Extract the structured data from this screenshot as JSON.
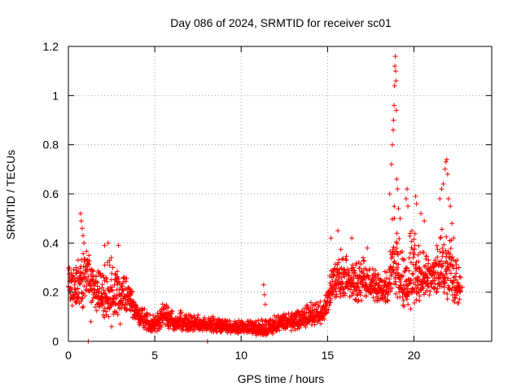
{
  "chart_data": {
    "type": "scatter",
    "title": "Day 086 of 2024, SRMTID for receiver sc01",
    "xlabel": "GPS time / hours",
    "ylabel": "SRMTID / TECUs",
    "xlim": [
      0,
      24.5
    ],
    "ylim": [
      0,
      1.2
    ],
    "xticks": [
      0,
      5,
      10,
      15,
      20
    ],
    "yticks": [
      0,
      0.2,
      0.4,
      0.6,
      0.8,
      1,
      1.2
    ],
    "xtick_labels": [
      "0",
      "5",
      "10",
      "15",
      "20"
    ],
    "ytick_labels": [
      "0",
      "0.2",
      "0.4",
      "0.6",
      "0.8",
      "1",
      "1.2"
    ],
    "grid": true,
    "series": [
      {
        "name": "SRMTID",
        "color": "#ff0000",
        "marker": "plus",
        "envelope": [
          {
            "x": 0.0,
            "low": 0.15,
            "mid": 0.24,
            "high": 0.33
          },
          {
            "x": 0.5,
            "low": 0.12,
            "mid": 0.22,
            "high": 0.34
          },
          {
            "x": 1.0,
            "low": 0.12,
            "mid": 0.27,
            "high": 0.38
          },
          {
            "x": 1.5,
            "low": 0.12,
            "mid": 0.22,
            "high": 0.33
          },
          {
            "x": 2.0,
            "low": 0.08,
            "mid": 0.18,
            "high": 0.34
          },
          {
            "x": 2.5,
            "low": 0.08,
            "mid": 0.18,
            "high": 0.36
          },
          {
            "x": 3.0,
            "low": 0.1,
            "mid": 0.18,
            "high": 0.32
          },
          {
            "x": 3.5,
            "low": 0.12,
            "mid": 0.19,
            "high": 0.26
          },
          {
            "x": 4.0,
            "low": 0.06,
            "mid": 0.11,
            "high": 0.16
          },
          {
            "x": 4.5,
            "low": 0.03,
            "mid": 0.08,
            "high": 0.13
          },
          {
            "x": 5.0,
            "low": 0.02,
            "mid": 0.06,
            "high": 0.11
          },
          {
            "x": 5.5,
            "low": 0.05,
            "mid": 0.11,
            "high": 0.18
          },
          {
            "x": 6.0,
            "low": 0.04,
            "mid": 0.08,
            "high": 0.14
          },
          {
            "x": 7.0,
            "low": 0.04,
            "mid": 0.07,
            "high": 0.12
          },
          {
            "x": 8.0,
            "low": 0.04,
            "mid": 0.07,
            "high": 0.11
          },
          {
            "x": 9.0,
            "low": 0.03,
            "mid": 0.06,
            "high": 0.1
          },
          {
            "x": 10.0,
            "low": 0.03,
            "mid": 0.05,
            "high": 0.09
          },
          {
            "x": 11.0,
            "low": 0.02,
            "mid": 0.05,
            "high": 0.09
          },
          {
            "x": 11.5,
            "low": 0.02,
            "mid": 0.05,
            "high": 0.1
          },
          {
            "x": 12.0,
            "low": 0.03,
            "mid": 0.07,
            "high": 0.11
          },
          {
            "x": 13.0,
            "low": 0.04,
            "mid": 0.08,
            "high": 0.12
          },
          {
            "x": 14.0,
            "low": 0.06,
            "mid": 0.1,
            "high": 0.16
          },
          {
            "x": 14.8,
            "low": 0.07,
            "mid": 0.11,
            "high": 0.17
          },
          {
            "x": 15.2,
            "low": 0.14,
            "mid": 0.22,
            "high": 0.32
          },
          {
            "x": 15.7,
            "low": 0.16,
            "mid": 0.26,
            "high": 0.4
          },
          {
            "x": 16.5,
            "low": 0.15,
            "mid": 0.23,
            "high": 0.33
          },
          {
            "x": 17.0,
            "low": 0.16,
            "mid": 0.24,
            "high": 0.36
          },
          {
            "x": 18.0,
            "low": 0.15,
            "mid": 0.21,
            "high": 0.28
          },
          {
            "x": 18.5,
            "low": 0.15,
            "mid": 0.22,
            "high": 0.3
          },
          {
            "x": 18.9,
            "low": 0.18,
            "mid": 0.35,
            "high": 0.7
          },
          {
            "x": 19.3,
            "low": 0.13,
            "mid": 0.22,
            "high": 0.38
          },
          {
            "x": 19.8,
            "low": 0.13,
            "mid": 0.27,
            "high": 0.5
          },
          {
            "x": 20.5,
            "low": 0.16,
            "mid": 0.26,
            "high": 0.42
          },
          {
            "x": 21.0,
            "low": 0.18,
            "mid": 0.26,
            "high": 0.33
          },
          {
            "x": 21.5,
            "low": 0.18,
            "mid": 0.27,
            "high": 0.45
          },
          {
            "x": 22.0,
            "low": 0.16,
            "mid": 0.26,
            "high": 0.5
          },
          {
            "x": 22.7,
            "low": 0.13,
            "mid": 0.2,
            "high": 0.28
          }
        ],
        "spikes": [
          {
            "x": 0.7,
            "y": 0.52
          },
          {
            "x": 0.75,
            "y": 0.49
          },
          {
            "x": 0.8,
            "y": 0.46
          },
          {
            "x": 0.85,
            "y": 0.43
          },
          {
            "x": 0.9,
            "y": 0.4
          },
          {
            "x": 1.15,
            "y": 0.0
          },
          {
            "x": 2.1,
            "y": 0.39
          },
          {
            "x": 2.3,
            "y": 0.4
          },
          {
            "x": 2.9,
            "y": 0.39
          },
          {
            "x": 1.3,
            "y": 0.08
          },
          {
            "x": 2.5,
            "y": 0.06
          },
          {
            "x": 3.0,
            "y": 0.07
          },
          {
            "x": 8.05,
            "y": 0.0
          },
          {
            "x": 11.3,
            "y": 0.23
          },
          {
            "x": 11.35,
            "y": 0.19
          },
          {
            "x": 11.4,
            "y": 0.15
          },
          {
            "x": 15.2,
            "y": 0.42
          },
          {
            "x": 15.6,
            "y": 0.45
          },
          {
            "x": 16.4,
            "y": 0.42
          },
          {
            "x": 17.3,
            "y": 0.38
          },
          {
            "x": 18.6,
            "y": 0.6
          },
          {
            "x": 18.7,
            "y": 0.72
          },
          {
            "x": 18.75,
            "y": 0.8
          },
          {
            "x": 18.8,
            "y": 0.86
          },
          {
            "x": 18.82,
            "y": 0.9
          },
          {
            "x": 18.85,
            "y": 0.96
          },
          {
            "x": 18.88,
            "y": 1.04
          },
          {
            "x": 18.9,
            "y": 1.12
          },
          {
            "x": 18.92,
            "y": 1.16
          },
          {
            "x": 18.94,
            "y": 1.1
          },
          {
            "x": 18.96,
            "y": 1.06
          },
          {
            "x": 18.98,
            "y": 0.94
          },
          {
            "x": 19.0,
            "y": 0.66
          },
          {
            "x": 19.05,
            "y": 0.62
          },
          {
            "x": 19.1,
            "y": 0.54
          },
          {
            "x": 19.2,
            "y": 0.5
          },
          {
            "x": 19.55,
            "y": 0.58
          },
          {
            "x": 19.6,
            "y": 0.62
          },
          {
            "x": 19.65,
            "y": 0.55
          },
          {
            "x": 20.1,
            "y": 0.59
          },
          {
            "x": 20.15,
            "y": 0.56
          },
          {
            "x": 20.4,
            "y": 0.52
          },
          {
            "x": 20.6,
            "y": 0.49
          },
          {
            "x": 21.5,
            "y": 0.58
          },
          {
            "x": 21.6,
            "y": 0.62
          },
          {
            "x": 21.7,
            "y": 0.64
          },
          {
            "x": 21.8,
            "y": 0.7
          },
          {
            "x": 21.85,
            "y": 0.73
          },
          {
            "x": 21.9,
            "y": 0.74
          },
          {
            "x": 21.95,
            "y": 0.68
          },
          {
            "x": 22.0,
            "y": 0.58
          },
          {
            "x": 22.1,
            "y": 0.55
          },
          {
            "x": 22.2,
            "y": 0.48
          },
          {
            "x": 22.3,
            "y": 0.42
          },
          {
            "x": 22.5,
            "y": 0.33
          },
          {
            "x": 22.6,
            "y": 0.3
          },
          {
            "x": 22.7,
            "y": 0.26
          },
          {
            "x": 22.8,
            "y": 0.22
          }
        ]
      }
    ]
  }
}
